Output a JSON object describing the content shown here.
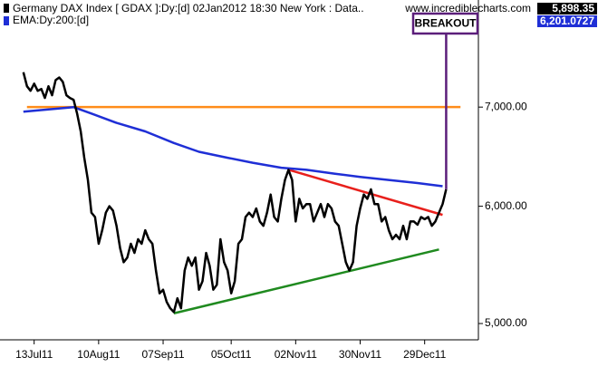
{
  "chart_data": {
    "type": "line",
    "title": "Germany DAX Index [ GDAX ]:Dy:[d]  02Jan2012 18:30 New York : Data..",
    "subtitle": "EMA:Dy:200:[d]",
    "source": "www.incrediblecharts.com",
    "readouts": [
      "5,898.35",
      "6,201.0727"
    ],
    "annotation": "BREAKOUT",
    "annotation_color": "#5b1e7a",
    "log_scale": true,
    "ylim": [
      4875,
      8210
    ],
    "yticks": [
      {
        "value": 5000,
        "label": "5,000.00"
      },
      {
        "value": 6000,
        "label": "6,000.00"
      },
      {
        "value": 7000,
        "label": "7,000.00"
      }
    ],
    "xlim": [
      -4,
      127
    ],
    "xticks": [
      {
        "value": 3,
        "label": "13Jul11"
      },
      {
        "value": 21,
        "label": "10Aug11"
      },
      {
        "value": 39,
        "label": "07Sep11"
      },
      {
        "value": 58,
        "label": "05Oct11"
      },
      {
        "value": 76,
        "label": "02Nov11"
      },
      {
        "value": 94,
        "label": "30Nov11"
      },
      {
        "value": 112,
        "label": "29Dec11"
      }
    ],
    "series": [
      {
        "name": "Germany DAX Index",
        "color": "#000000",
        "values": [
          7390,
          7230,
          7180,
          7260,
          7180,
          7200,
          7100,
          7230,
          7130,
          7300,
          7330,
          7280,
          7130,
          7100,
          7080,
          6930,
          6740,
          6470,
          6250,
          5940,
          5900,
          5660,
          5780,
          5940,
          6000,
          5960,
          5820,
          5620,
          5500,
          5540,
          5660,
          5580,
          5700,
          5660,
          5780,
          5700,
          5660,
          5430,
          5240,
          5270,
          5170,
          5120,
          5090,
          5200,
          5120,
          5430,
          5540,
          5470,
          5540,
          5270,
          5340,
          5580,
          5470,
          5270,
          5310,
          5700,
          5500,
          5430,
          5240,
          5340,
          5660,
          5700,
          5900,
          5940,
          5900,
          5980,
          5860,
          5820,
          5940,
          6110,
          5900,
          5860,
          6070,
          6250,
          6350,
          6250,
          5860,
          6070,
          5980,
          6020,
          6020,
          5860,
          5940,
          6020,
          5900,
          6020,
          5980,
          5860,
          5820,
          5660,
          5500,
          5430,
          5500,
          5820,
          5980,
          6110,
          6070,
          6160,
          6020,
          6020,
          5860,
          5900,
          5780,
          5700,
          5740,
          5700,
          5820,
          5700,
          5860,
          5860,
          5830,
          5900,
          5880,
          5900,
          5820,
          5860,
          5940,
          6020,
          6160
        ]
      },
      {
        "name": "EMA:Dy:200:[d]",
        "color": "#1f2fd6",
        "x": [
          0,
          14,
          19,
          26,
          34,
          42,
          49,
          57,
          64,
          72,
          79,
          87,
          94,
          102,
          110,
          117
        ],
        "values": [
          6950,
          7000,
          6930,
          6830,
          6740,
          6620,
          6530,
          6470,
          6420,
          6370,
          6350,
          6310,
          6280,
          6250,
          6220,
          6190
        ]
      }
    ],
    "trendlines": [
      {
        "color": "#ff8c1a",
        "x": [
          1,
          122
        ],
        "values": [
          7000,
          7000
        ]
      },
      {
        "color": "#e8201c",
        "x": [
          74,
          117
        ],
        "values": [
          6350,
          5920
        ]
      },
      {
        "color": "#1f8a1f",
        "x": [
          42,
          116
        ],
        "values": [
          5080,
          5610
        ]
      }
    ]
  }
}
